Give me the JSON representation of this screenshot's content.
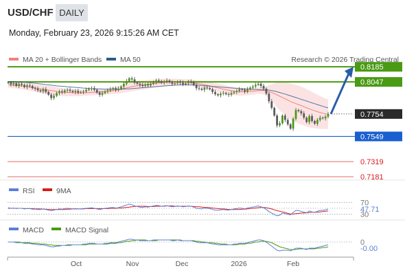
{
  "header": {
    "pair": "USD/CHF",
    "timeframe": "DAILY",
    "datetime": "Monday, February 23, 2026 9:15:26 AM CET"
  },
  "legend": {
    "ma20": "MA 20 + Bollinger Bands",
    "ma50": "MA 50",
    "ma20_color": "#f08080",
    "ma50_color": "#2c5a8c",
    "credit": "Research © 2026 Trading Central"
  },
  "chart_data": [
    {
      "type": "candlestick",
      "ylim": [
        0.715,
        0.823
      ],
      "current_price": 0.7754,
      "levels": [
        {
          "label": "0.8185",
          "value": 0.8185,
          "kind": "resistance",
          "color": "#4a9a14"
        },
        {
          "label": "0.8047",
          "value": 0.8047,
          "kind": "resistance",
          "color": "#4a9a14"
        },
        {
          "label": "0.7754",
          "value": 0.7754,
          "kind": "current",
          "color": "#2a2a2a"
        },
        {
          "label": "0.7549",
          "value": 0.7549,
          "kind": "pivot",
          "color": "#1a5fd0"
        },
        {
          "label": "0.7319",
          "value": 0.7319,
          "kind": "support",
          "color": "#d91a1a"
        },
        {
          "label": "0.7181",
          "value": 0.7181,
          "kind": "support",
          "color": "#d91a1a"
        }
      ],
      "close": [
        0.804,
        0.8025,
        0.8035,
        0.801,
        0.803,
        0.802,
        0.8,
        0.8015,
        0.801,
        0.799,
        0.7985,
        0.797,
        0.796,
        0.798,
        0.7955,
        0.793,
        0.79,
        0.792,
        0.7945,
        0.796,
        0.795,
        0.797,
        0.7975,
        0.7965,
        0.7955,
        0.7965,
        0.795,
        0.7955,
        0.796,
        0.7975,
        0.7985,
        0.799,
        0.7975,
        0.795,
        0.793,
        0.7945,
        0.796,
        0.797,
        0.798,
        0.799,
        0.7975,
        0.7985,
        0.8005,
        0.803,
        0.8055,
        0.808,
        0.807,
        0.804,
        0.803,
        0.802,
        0.801,
        0.8025,
        0.8015,
        0.803,
        0.8045,
        0.806,
        0.8055,
        0.804,
        0.805,
        0.806,
        0.8045,
        0.803,
        0.8035,
        0.805,
        0.804,
        0.8025,
        0.8035,
        0.805,
        0.8045,
        0.802,
        0.799,
        0.7985,
        0.7975,
        0.7995,
        0.799,
        0.798,
        0.7955,
        0.7935,
        0.7925,
        0.794,
        0.7945,
        0.7935,
        0.793,
        0.7945,
        0.7955,
        0.7965,
        0.798,
        0.7975,
        0.796,
        0.798,
        0.7995,
        0.8005,
        0.802,
        0.803,
        0.801,
        0.7985,
        0.794,
        0.787,
        0.781,
        0.774,
        0.765,
        0.767,
        0.774,
        0.77,
        0.766,
        0.762,
        0.771,
        0.779,
        0.778,
        0.776,
        0.772,
        0.768,
        0.7735,
        0.769,
        0.7665,
        0.77,
        0.772,
        0.7715,
        0.773,
        0.7754
      ],
      "ma20": [
        0.802,
        0.8018,
        0.8016,
        0.8014,
        0.8012,
        0.801,
        0.8007,
        0.8004,
        0.8,
        0.7996,
        0.7992,
        0.7988,
        0.7984,
        0.798,
        0.7976,
        0.7972,
        0.7968,
        0.7964,
        0.796,
        0.7957,
        0.7955,
        0.7953,
        0.7951,
        0.795,
        0.7949,
        0.7948,
        0.7947,
        0.7947,
        0.7948,
        0.7949,
        0.795,
        0.7951,
        0.7952,
        0.7953,
        0.7955,
        0.7957,
        0.7959,
        0.7961,
        0.7963,
        0.7966,
        0.797,
        0.7975,
        0.798,
        0.7986,
        0.7992,
        0.7998,
        0.8004,
        0.8009,
        0.8013,
        0.8016,
        0.8019,
        0.8022,
        0.8025,
        0.8028,
        0.8031,
        0.8034,
        0.8037,
        0.8039,
        0.8041,
        0.8043,
        0.8044,
        0.8045,
        0.8046,
        0.8046,
        0.8046,
        0.8045,
        0.8044,
        0.8042,
        0.804,
        0.8037,
        0.8034,
        0.803,
        0.8026,
        0.8021,
        0.8016,
        0.8011,
        0.8005,
        0.7999,
        0.7993,
        0.7987,
        0.7981,
        0.7976,
        0.7971,
        0.7967,
        0.7963,
        0.796,
        0.7958,
        0.7957,
        0.7957,
        0.7958,
        0.796,
        0.7962,
        0.7965,
        0.7968,
        0.7969,
        0.7968,
        0.7964,
        0.7958,
        0.795,
        0.794,
        0.7928,
        0.7916,
        0.7905,
        0.7893,
        0.7881,
        0.7868,
        0.7858,
        0.7849,
        0.784,
        0.7831,
        0.7821,
        0.781,
        0.7801,
        0.7792,
        0.7783,
        0.7775,
        0.7768,
        0.7761,
        0.7756,
        0.7752
      ],
      "ma50": [
        0.805,
        0.8049,
        0.8048,
        0.8047,
        0.8046,
        0.8045,
        0.8043,
        0.8041,
        0.8039,
        0.8037,
        0.8035,
        0.8032,
        0.8029,
        0.8026,
        0.8023,
        0.802,
        0.8017,
        0.8014,
        0.8011,
        0.8009,
        0.8007,
        0.8005,
        0.8003,
        0.8001,
        0.7999,
        0.7997,
        0.7995,
        0.7993,
        0.7991,
        0.7989,
        0.7987,
        0.7986,
        0.7985,
        0.7984,
        0.7983,
        0.7982,
        0.7981,
        0.798,
        0.798,
        0.798,
        0.798,
        0.798,
        0.7981,
        0.7982,
        0.7983,
        0.7984,
        0.7986,
        0.7988,
        0.799,
        0.7992,
        0.7994,
        0.7996,
        0.7998,
        0.8,
        0.8002,
        0.8004,
        0.8006,
        0.8008,
        0.801,
        0.8012,
        0.8014,
        0.8016,
        0.8017,
        0.8018,
        0.8019,
        0.802,
        0.802,
        0.802,
        0.802,
        0.8019,
        0.8018,
        0.8016,
        0.8014,
        0.8012,
        0.801,
        0.8008,
        0.8006,
        0.8004,
        0.8002,
        0.8,
        0.7998,
        0.7996,
        0.7994,
        0.7992,
        0.799,
        0.7988,
        0.7986,
        0.7984,
        0.7982,
        0.7981,
        0.798,
        0.7979,
        0.7978,
        0.7977,
        0.7976,
        0.7975,
        0.7974,
        0.7972,
        0.7968,
        0.7963,
        0.7957,
        0.795,
        0.7943,
        0.7936,
        0.7928,
        0.792,
        0.7912,
        0.7904,
        0.7896,
        0.7888,
        0.788,
        0.7872,
        0.7864,
        0.7856,
        0.7848,
        0.784,
        0.7832,
        0.7824,
        0.7816,
        0.781
      ],
      "bb_width": [
        0.0025,
        0.0026,
        0.0027,
        0.0028,
        0.0029,
        0.003,
        0.0031,
        0.0032,
        0.0033,
        0.0034,
        0.0035,
        0.0036,
        0.0037,
        0.0038,
        0.0039,
        0.004,
        0.004,
        0.004,
        0.0039,
        0.0038,
        0.0037,
        0.0036,
        0.0035,
        0.0034,
        0.0033,
        0.0032,
        0.0031,
        0.003,
        0.0029,
        0.0028,
        0.0027,
        0.0026,
        0.0025,
        0.0025,
        0.0025,
        0.0026,
        0.0027,
        0.0028,
        0.0029,
        0.003,
        0.0032,
        0.0034,
        0.0036,
        0.0038,
        0.004,
        0.0042,
        0.0043,
        0.0044,
        0.0044,
        0.0043,
        0.0042,
        0.0041,
        0.004,
        0.0039,
        0.0038,
        0.0037,
        0.0036,
        0.0035,
        0.0034,
        0.0033,
        0.0032,
        0.0031,
        0.003,
        0.0029,
        0.0028,
        0.0028,
        0.0028,
        0.0028,
        0.0028,
        0.0029,
        0.003,
        0.0031,
        0.0032,
        0.0033,
        0.0034,
        0.0035,
        0.0036,
        0.0037,
        0.0038,
        0.0039,
        0.004,
        0.004,
        0.004,
        0.0039,
        0.0038,
        0.0037,
        0.0036,
        0.0035,
        0.0034,
        0.0033,
        0.0032,
        0.0031,
        0.003,
        0.003,
        0.0032,
        0.0036,
        0.0045,
        0.006,
        0.0075,
        0.0095,
        0.0115,
        0.013,
        0.014,
        0.015,
        0.0158,
        0.0165,
        0.017,
        0.0172,
        0.0173,
        0.0173,
        0.0172,
        0.017,
        0.0168,
        0.0165,
        0.016,
        0.0155,
        0.015,
        0.0145,
        0.014,
        0.0135
      ],
      "forecast_arrow": {
        "from": 0.7754,
        "to": 0.8185
      },
      "x_ticks": [
        "Oct",
        "Nov",
        "Dec",
        "2026",
        "Feb"
      ]
    },
    {
      "type": "line",
      "name": "RSI",
      "series": [
        {
          "name": "RSI",
          "color": "#5a7fd6"
        },
        {
          "name": "9MA",
          "color": "#d91a1a"
        }
      ],
      "levels": [
        70,
        30
      ],
      "level_labels": [
        "70",
        "30"
      ],
      "current_label": "47.71",
      "rsi": [
        52,
        50,
        51,
        49,
        50,
        50,
        48,
        49,
        49,
        47,
        47,
        46,
        46,
        48,
        46,
        44,
        42,
        44,
        46,
        48,
        47,
        49,
        50,
        49,
        48,
        49,
        48,
        48,
        49,
        50,
        51,
        52,
        50,
        48,
        46,
        48,
        50,
        51,
        52,
        53,
        51,
        52,
        55,
        58,
        61,
        64,
        62,
        58,
        56,
        54,
        53,
        55,
        54,
        56,
        58,
        60,
        59,
        57,
        58,
        59,
        57,
        55,
        56,
        58,
        57,
        55,
        56,
        58,
        57,
        54,
        50,
        49,
        48,
        51,
        50,
        49,
        46,
        44,
        43,
        45,
        46,
        45,
        44,
        46,
        48,
        49,
        51,
        50,
        48,
        51,
        53,
        54,
        56,
        58,
        55,
        52,
        46,
        39,
        34,
        29,
        25,
        27,
        34,
        32,
        30,
        28,
        36,
        43,
        42,
        40,
        37,
        35,
        41,
        38,
        36,
        40,
        43,
        43,
        45,
        47.71
      ],
      "ma9": [
        50,
        50,
        50,
        50,
        50,
        50,
        49,
        49,
        49,
        49,
        48,
        48,
        48,
        47,
        47,
        46,
        46,
        46,
        46,
        46,
        46,
        46,
        47,
        47,
        48,
        48,
        48,
        48,
        48,
        49,
        49,
        49,
        49,
        49,
        49,
        49,
        49,
        49,
        50,
        50,
        50,
        51,
        51,
        52,
        53,
        54,
        55,
        56,
        57,
        57,
        57,
        57,
        56,
        56,
        56,
        57,
        57,
        57,
        57,
        58,
        58,
        58,
        57,
        57,
        57,
        57,
        57,
        57,
        57,
        56,
        55,
        55,
        54,
        53,
        53,
        52,
        51,
        50,
        49,
        48,
        48,
        47,
        46,
        46,
        46,
        46,
        46,
        47,
        47,
        48,
        49,
        50,
        51,
        52,
        53,
        53,
        52,
        50,
        48,
        45,
        42,
        40,
        38,
        36,
        33,
        31,
        31,
        32,
        33,
        34,
        34,
        35,
        36,
        37,
        37,
        37,
        38,
        39,
        40,
        41
      ],
      "ylim": [
        20,
        80
      ]
    },
    {
      "type": "line",
      "name": "MACD",
      "series": [
        {
          "name": "MACD",
          "color": "#5a7fd6"
        },
        {
          "name": "MACD Signal",
          "color": "#4a9a14"
        }
      ],
      "levels": [
        0
      ],
      "level_labels": [
        "0"
      ],
      "current_label": "-0.00",
      "macd": [
        0.0,
        0.0,
        0.0,
        -0.1,
        -0.1,
        -0.1,
        -0.2,
        -0.2,
        -0.2,
        -0.3,
        -0.3,
        -0.4,
        -0.4,
        -0.4,
        -0.5,
        -0.6,
        -0.7,
        -0.7,
        -0.6,
        -0.6,
        -0.5,
        -0.5,
        -0.4,
        -0.4,
        -0.4,
        -0.4,
        -0.4,
        -0.4,
        -0.3,
        -0.3,
        -0.2,
        -0.2,
        -0.2,
        -0.3,
        -0.3,
        -0.3,
        -0.2,
        -0.2,
        -0.1,
        -0.1,
        -0.1,
        0.0,
        0.1,
        0.2,
        0.3,
        0.4,
        0.4,
        0.3,
        0.3,
        0.2,
        0.2,
        0.2,
        0.2,
        0.2,
        0.3,
        0.3,
        0.3,
        0.3,
        0.3,
        0.3,
        0.3,
        0.2,
        0.2,
        0.3,
        0.2,
        0.2,
        0.2,
        0.2,
        0.2,
        0.1,
        0.0,
        -0.1,
        -0.1,
        -0.1,
        -0.1,
        -0.2,
        -0.3,
        -0.3,
        -0.4,
        -0.4,
        -0.4,
        -0.4,
        -0.4,
        -0.4,
        -0.3,
        -0.3,
        -0.2,
        -0.2,
        -0.2,
        -0.1,
        0.0,
        0.1,
        0.2,
        0.3,
        0.3,
        0.2,
        0.0,
        -0.3,
        -0.6,
        -0.9,
        -1.2,
        -1.3,
        -1.2,
        -1.2,
        -1.2,
        -1.3,
        -1.1,
        -0.9,
        -0.9,
        -0.9,
        -1.0,
        -1.1,
        -0.9,
        -0.9,
        -0.9,
        -0.8,
        -0.7,
        -0.6,
        -0.5,
        -0.4
      ],
      "signal": [
        0.0,
        0.0,
        0.0,
        0.0,
        0.0,
        -0.1,
        -0.1,
        -0.1,
        -0.1,
        -0.2,
        -0.2,
        -0.2,
        -0.3,
        -0.3,
        -0.3,
        -0.4,
        -0.4,
        -0.5,
        -0.5,
        -0.5,
        -0.5,
        -0.5,
        -0.5,
        -0.5,
        -0.4,
        -0.4,
        -0.4,
        -0.4,
        -0.4,
        -0.4,
        -0.3,
        -0.3,
        -0.3,
        -0.3,
        -0.3,
        -0.3,
        -0.3,
        -0.3,
        -0.2,
        -0.2,
        -0.2,
        -0.1,
        -0.1,
        0.0,
        0.1,
        0.1,
        0.2,
        0.2,
        0.3,
        0.3,
        0.3,
        0.3,
        0.2,
        0.2,
        0.2,
        0.2,
        0.3,
        0.3,
        0.3,
        0.3,
        0.3,
        0.3,
        0.3,
        0.3,
        0.3,
        0.2,
        0.2,
        0.2,
        0.2,
        0.2,
        0.1,
        0.1,
        0.0,
        0.0,
        -0.1,
        -0.1,
        -0.1,
        -0.2,
        -0.2,
        -0.3,
        -0.3,
        -0.3,
        -0.4,
        -0.4,
        -0.4,
        -0.4,
        -0.3,
        -0.3,
        -0.3,
        -0.2,
        -0.2,
        -0.1,
        0.0,
        0.0,
        0.1,
        0.1,
        0.1,
        0.0,
        -0.1,
        -0.3,
        -0.5,
        -0.7,
        -0.8,
        -0.9,
        -1.0,
        -1.1,
        -1.1,
        -1.1,
        -1.0,
        -1.0,
        -1.0,
        -1.0,
        -1.0,
        -1.0,
        -1.0,
        -0.9,
        -0.9,
        -0.8,
        -0.8,
        -0.7
      ],
      "ylim": [
        -1.8,
        1.2
      ]
    }
  ]
}
